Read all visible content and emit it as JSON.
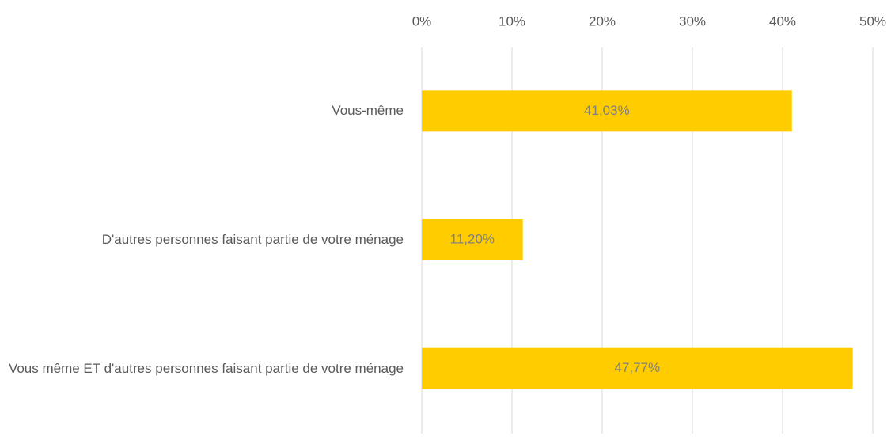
{
  "chart_data": {
    "type": "bar",
    "orientation": "horizontal",
    "categories": [
      "Vous-même",
      "D'autres personnes faisant partie de votre ménage",
      "Vous même ET d'autres personnes faisant partie de votre ménage"
    ],
    "values": [
      41.03,
      11.2,
      47.77
    ],
    "value_labels": [
      "41,03%",
      "11,20%",
      "47,77%"
    ],
    "color": "#ffcc00",
    "xlim": [
      0,
      50
    ],
    "xticks": [
      {
        "value": 0,
        "label": "0%"
      },
      {
        "value": 10,
        "label": "10%"
      },
      {
        "value": 20,
        "label": "20%"
      },
      {
        "value": 30,
        "label": "30%"
      },
      {
        "value": 40,
        "label": "40%"
      },
      {
        "value": 50,
        "label": "50%"
      }
    ],
    "grid": true
  }
}
